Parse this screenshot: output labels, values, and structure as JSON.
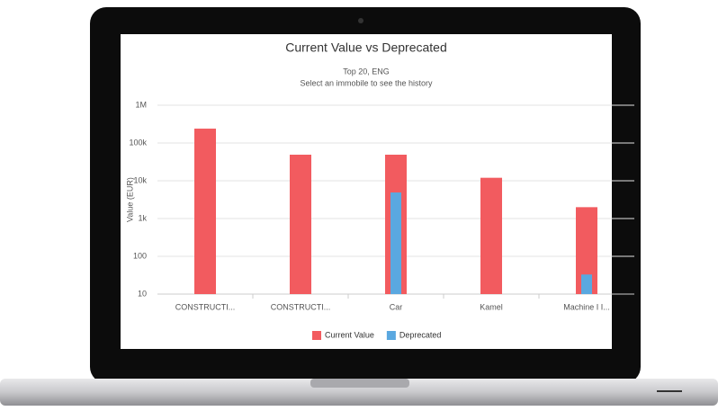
{
  "chart_data": {
    "type": "bar",
    "title": "Current Value vs Deprecated",
    "subtitle": [
      "Top 20, ENG",
      "Select an immobile to see the history"
    ],
    "y_label": "Value (EUR)",
    "categories": [
      "CONSTRUCTI...",
      "CONSTRUCTI...",
      "Car",
      "Kamel",
      "Machine I I..."
    ],
    "series": [
      {
        "name": "Current Value",
        "color": "#f25b5f",
        "values": [
          240000,
          49000,
          49000,
          12000,
          2000
        ]
      },
      {
        "name": "Deprecated",
        "color": "#5aa8e0",
        "values": [
          null,
          null,
          4900,
          null,
          33
        ]
      }
    ],
    "log_scale": true,
    "ylim": [
      10,
      1000000
    ],
    "yticks": [
      {
        "value": 10,
        "label": "10"
      },
      {
        "value": 100,
        "label": "100"
      },
      {
        "value": 1000,
        "label": "1k"
      },
      {
        "value": 10000,
        "label": "10k"
      },
      {
        "value": 100000,
        "label": "100k"
      },
      {
        "value": 1000000,
        "label": "1M"
      }
    ],
    "grid": true,
    "legend_position": "bottom"
  }
}
